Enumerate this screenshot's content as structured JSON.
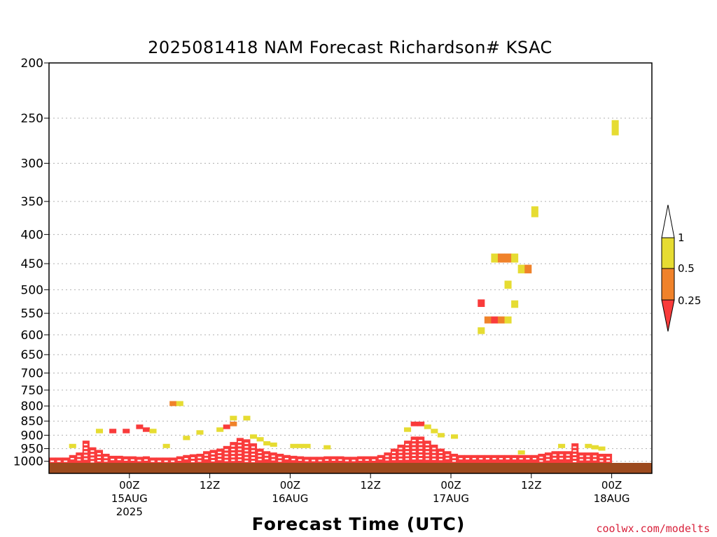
{
  "title": "2025081418 NAM Forecast Richardson# KSAC",
  "xlabel": "Forecast Time (UTC)",
  "credit": "coolwx.com/modelts",
  "colors": {
    "lt025": "#f93b3b",
    "mid": "#f0822a",
    "high": "#e6dc32",
    "ground": "#9c4a1e",
    "grid": "#b0b0b0"
  },
  "legend": {
    "labels": [
      "1",
      "0.5",
      "0.25"
    ]
  },
  "chart_data": {
    "type": "heatmap",
    "title": "2025081418 NAM Forecast Richardson# KSAC",
    "xlabel": "Forecast Time (UTC)",
    "ylabel": "",
    "y_scale": "log-pressure",
    "ylim": [
      1050,
      200
    ],
    "xlim_hours": [
      -6,
      84
    ],
    "y_ticks": [
      200,
      250,
      300,
      350,
      400,
      450,
      500,
      550,
      600,
      650,
      700,
      750,
      800,
      850,
      900,
      950,
      1000
    ],
    "x_ticks": [
      {
        "hour": 6,
        "label": "00Z",
        "date": "15AUG",
        "year": "2025"
      },
      {
        "hour": 18,
        "label": "12Z",
        "date": "",
        "year": ""
      },
      {
        "hour": 30,
        "label": "00Z",
        "date": "16AUG",
        "year": ""
      },
      {
        "hour": 42,
        "label": "12Z",
        "date": "",
        "year": ""
      },
      {
        "hour": 54,
        "label": "00Z",
        "date": "17AUG",
        "year": ""
      },
      {
        "hour": 66,
        "label": "12Z",
        "date": "",
        "year": ""
      },
      {
        "hour": 78,
        "label": "00Z",
        "date": "18AUG",
        "year": ""
      }
    ],
    "levels": [
      {
        "max": 0.25,
        "color": "#f93b3b"
      },
      {
        "min": 0.25,
        "max": 0.5,
        "color": "#f0822a"
      },
      {
        "min": 0.5,
        "max": 1,
        "color": "#e6dc32"
      }
    ],
    "cells": [
      [
        0,
        985,
        0
      ],
      [
        1,
        985,
        0
      ],
      [
        2,
        985,
        0
      ],
      [
        3,
        975,
        0
      ],
      [
        4,
        965,
        0
      ],
      [
        5,
        950,
        0
      ],
      [
        6,
        945,
        0
      ],
      [
        7,
        955,
        0
      ],
      [
        8,
        970,
        0
      ],
      [
        9,
        978,
        0
      ],
      [
        10,
        978,
        0
      ],
      [
        11,
        980,
        0
      ],
      [
        12,
        980,
        0
      ],
      [
        13,
        982,
        0
      ],
      [
        14,
        980,
        0
      ],
      [
        15,
        985,
        0
      ],
      [
        16,
        985,
        0
      ],
      [
        17,
        985,
        0
      ],
      [
        18,
        985,
        0
      ],
      [
        19,
        980,
        0
      ],
      [
        20,
        975,
        0
      ],
      [
        21,
        972,
        0
      ],
      [
        22,
        970,
        0
      ],
      [
        23,
        960,
        0
      ],
      [
        24,
        955,
        0
      ],
      [
        25,
        950,
        0
      ],
      [
        26,
        940,
        0
      ],
      [
        27,
        925,
        0
      ],
      [
        28,
        910,
        0
      ],
      [
        29,
        915,
        0
      ],
      [
        30,
        930,
        0
      ],
      [
        31,
        950,
        0
      ],
      [
        32,
        960,
        0
      ],
      [
        33,
        965,
        0
      ],
      [
        34,
        970,
        0
      ],
      [
        35,
        975,
        0
      ],
      [
        36,
        978,
        0
      ],
      [
        37,
        980,
        0
      ],
      [
        38,
        982,
        0
      ],
      [
        39,
        982,
        0
      ],
      [
        40,
        982,
        0
      ],
      [
        41,
        980,
        0
      ],
      [
        42,
        980,
        0
      ],
      [
        43,
        980,
        0
      ],
      [
        44,
        982,
        0
      ],
      [
        45,
        982,
        0
      ],
      [
        46,
        980,
        0
      ],
      [
        47,
        980,
        0
      ],
      [
        48,
        980,
        0
      ],
      [
        49,
        975,
        0
      ],
      [
        50,
        965,
        0
      ],
      [
        51,
        950,
        0
      ],
      [
        52,
        935,
        0
      ],
      [
        53,
        920,
        0
      ],
      [
        54,
        905,
        0
      ],
      [
        55,
        905,
        0
      ],
      [
        56,
        920,
        0
      ],
      [
        57,
        935,
        0
      ],
      [
        58,
        950,
        0
      ],
      [
        59,
        960,
        0
      ],
      [
        60,
        970,
        0
      ],
      [
        61,
        975,
        0
      ],
      [
        62,
        975,
        0
      ],
      [
        63,
        975,
        0
      ],
      [
        64,
        975,
        0
      ],
      [
        65,
        975,
        0
      ],
      [
        66,
        975,
        0
      ],
      [
        67,
        975,
        0
      ],
      [
        68,
        975,
        0
      ],
      [
        69,
        975,
        0
      ],
      [
        70,
        975,
        0
      ],
      [
        71,
        975,
        0
      ],
      [
        72,
        975,
        0
      ],
      [
        73,
        970,
        0
      ],
      [
        74,
        965,
        0
      ],
      [
        75,
        960,
        0
      ],
      [
        76,
        960,
        0
      ],
      [
        77,
        960,
        0
      ],
      [
        78,
        960,
        0
      ],
      [
        79,
        965,
        0
      ],
      [
        80,
        965,
        0
      ],
      [
        81,
        965,
        0
      ],
      [
        82,
        970,
        0
      ],
      [
        83,
        970,
        0
      ],
      [
        3,
        940,
        2
      ],
      [
        5,
        920,
        0
      ],
      [
        7,
        885,
        2
      ],
      [
        9,
        885,
        0
      ],
      [
        11,
        885,
        0
      ],
      [
        13,
        870,
        0
      ],
      [
        14,
        880,
        0
      ],
      [
        15,
        885,
        2
      ],
      [
        18,
        792,
        1
      ],
      [
        19,
        792,
        2
      ],
      [
        17,
        940,
        2
      ],
      [
        20,
        910,
        2
      ],
      [
        22,
        890,
        2
      ],
      [
        25,
        880,
        2
      ],
      [
        26,
        870,
        0
      ],
      [
        27,
        840,
        2
      ],
      [
        27,
        860,
        1
      ],
      [
        29,
        840,
        2
      ],
      [
        30,
        905,
        2
      ],
      [
        31,
        915,
        2
      ],
      [
        32,
        930,
        2
      ],
      [
        33,
        935,
        2
      ],
      [
        36,
        940,
        2
      ],
      [
        37,
        940,
        2
      ],
      [
        38,
        940,
        2
      ],
      [
        41,
        945,
        2
      ],
      [
        53,
        880,
        2
      ],
      [
        54,
        860,
        0
      ],
      [
        55,
        860,
        0
      ],
      [
        56,
        870,
        2
      ],
      [
        57,
        885,
        2
      ],
      [
        58,
        900,
        2
      ],
      [
        60,
        905,
        2
      ],
      [
        70,
        965,
        2
      ],
      [
        76,
        940,
        2
      ],
      [
        78,
        930,
        0
      ],
      [
        80,
        940,
        2
      ],
      [
        81,
        945,
        2
      ],
      [
        82,
        950,
        2
      ],
      [
        84,
        260,
        2
      ],
      [
        64,
        528,
        0
      ],
      [
        65,
        565,
        1
      ],
      [
        66,
        565,
        0
      ],
      [
        67,
        565,
        1
      ],
      [
        68,
        565,
        2
      ],
      [
        64,
        590,
        2
      ],
      [
        66,
        440,
        2
      ],
      [
        67,
        440,
        1
      ],
      [
        68,
        440,
        1
      ],
      [
        69,
        440,
        2
      ],
      [
        68,
        490,
        2
      ],
      [
        69,
        530,
        2
      ],
      [
        70,
        460,
        2
      ],
      [
        71,
        460,
        1
      ],
      [
        72,
        365,
        2
      ]
    ]
  }
}
